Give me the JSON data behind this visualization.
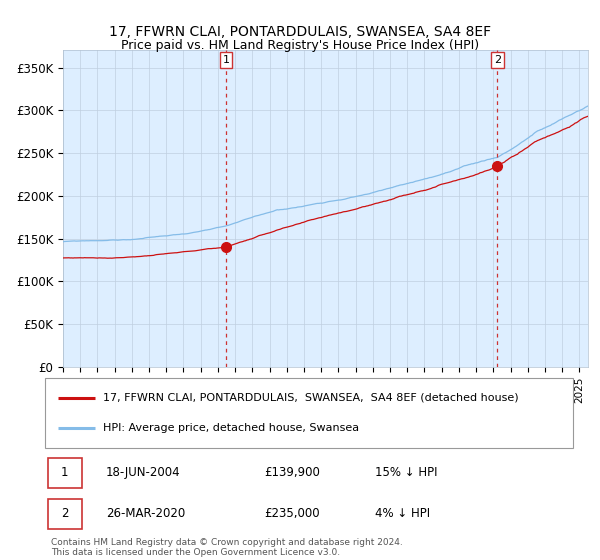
{
  "title_line1": "17, FFWRN CLAI, PONTARDDULAIS, SWANSEA, SA4 8EF",
  "title_line2": "Price paid vs. HM Land Registry's House Price Index (HPI)",
  "legend_line1": "17, FFWRN CLAI, PONTARDDULAIS,  SWANSEA,  SA4 8EF (detached house)",
  "legend_line2": "HPI: Average price, detached house, Swansea",
  "sale1_label": "1",
  "sale1_date": "18-JUN-2004",
  "sale1_price": "£139,900",
  "sale1_hpi": "15% ↓ HPI",
  "sale2_label": "2",
  "sale2_date": "26-MAR-2020",
  "sale2_price": "£235,000",
  "sale2_hpi": "4% ↓ HPI",
  "footer": "Contains HM Land Registry data © Crown copyright and database right 2024.\nThis data is licensed under the Open Government Licence v3.0.",
  "sale1_date_num": 2004.46,
  "sale1_price_val": 139900,
  "sale2_date_num": 2020.23,
  "sale2_price_val": 235000,
  "hpi_color": "#85bce8",
  "price_color": "#cc1111",
  "bg_color": "#ddeeff",
  "marker_color": "#cc1111",
  "vline_color": "#cc3333",
  "ylim_min": 0,
  "ylim_max": 370000,
  "xlim_min": 1995.0,
  "xlim_max": 2025.5
}
